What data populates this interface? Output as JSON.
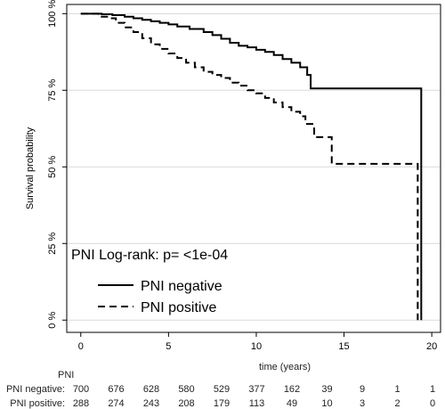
{
  "chart_data": {
    "type": "line",
    "step": true,
    "xlabel": "time (years)",
    "ylabel": "Survival probability",
    "xlim": [
      -0.8,
      20.5
    ],
    "ylim": [
      -0.04,
      1.03
    ],
    "xticks": [
      0,
      5,
      10,
      15,
      20
    ],
    "yticks": [
      0,
      0.25,
      0.5,
      0.75,
      1.0
    ],
    "ytick_labels": [
      "0 %",
      "25 %",
      "50 %",
      "75 %",
      "100 %"
    ],
    "grid": "horizontal",
    "annotation": "PNI  Log-rank: p= <1e-04",
    "series": [
      {
        "name": "PNI negative",
        "linestyle": "solid",
        "color": "#000000",
        "x": [
          0,
          1.2,
          1.8,
          2.5,
          3.0,
          3.5,
          4.0,
          4.5,
          5.0,
          5.5,
          6.2,
          7.0,
          7.5,
          8.0,
          8.5,
          9.0,
          9.5,
          10.0,
          10.5,
          11.0,
          11.5,
          12.0,
          12.5,
          12.9,
          13.1,
          19.3,
          19.4
        ],
        "y": [
          1.0,
          0.998,
          0.995,
          0.99,
          0.985,
          0.98,
          0.975,
          0.97,
          0.965,
          0.958,
          0.95,
          0.94,
          0.93,
          0.918,
          0.905,
          0.895,
          0.89,
          0.882,
          0.875,
          0.865,
          0.852,
          0.84,
          0.825,
          0.8,
          0.756,
          0.756,
          0.0
        ]
      },
      {
        "name": "PNI positive",
        "linestyle": "dashed",
        "color": "#000000",
        "x": [
          0,
          1.0,
          1.5,
          2.0,
          2.5,
          3.0,
          3.5,
          4.0,
          4.5,
          5.0,
          5.5,
          6.0,
          6.5,
          7.0,
          7.5,
          8.0,
          8.5,
          9.0,
          9.5,
          10.0,
          10.5,
          11.0,
          11.5,
          12.0,
          12.5,
          12.8,
          13.3,
          14.3,
          19.1,
          19.2
        ],
        "y": [
          1.0,
          0.99,
          0.985,
          0.97,
          0.955,
          0.94,
          0.92,
          0.9,
          0.885,
          0.87,
          0.855,
          0.84,
          0.825,
          0.81,
          0.8,
          0.79,
          0.775,
          0.765,
          0.75,
          0.74,
          0.725,
          0.71,
          0.695,
          0.68,
          0.665,
          0.64,
          0.597,
          0.51,
          0.51,
          0.0
        ]
      }
    ],
    "risk_table": {
      "title": "PNI",
      "times": [
        0,
        2,
        4,
        6,
        8,
        10,
        12,
        14,
        16,
        18,
        20
      ],
      "rows": [
        {
          "label": "PNI negative:",
          "values": [
            "700",
            "676",
            "628",
            "580",
            "529",
            "377",
            "162",
            "39",
            "9",
            "1",
            "1"
          ]
        },
        {
          "label": "PNI positive:",
          "values": [
            "288",
            "274",
            "243",
            "208",
            "179",
            "113",
            "49",
            "10",
            "3",
            "2",
            "0"
          ]
        }
      ]
    }
  }
}
